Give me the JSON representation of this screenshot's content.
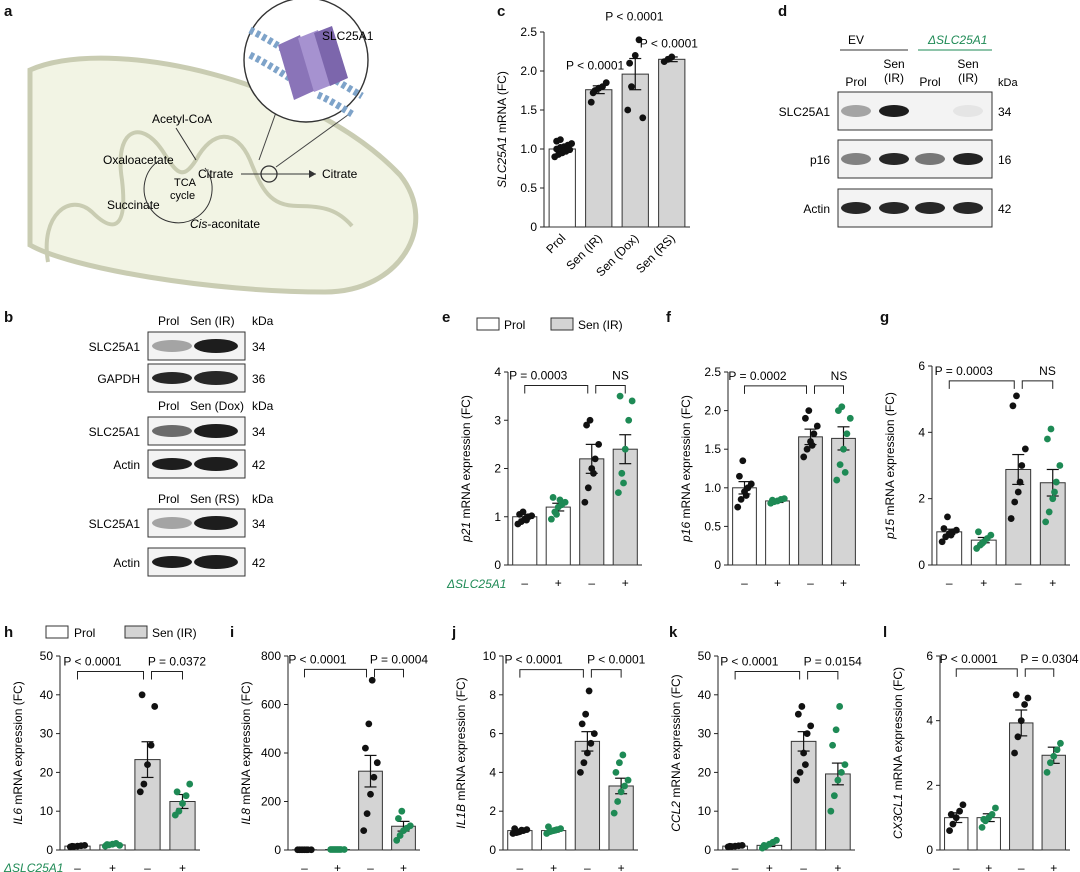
{
  "colors": {
    "prol_fill": "#ffffff",
    "sen_fill": "#d4d4d4",
    "control_dot": "#111111",
    "ko_dot": "#1e8a55",
    "ko_label": "#1e8a55",
    "bar_edge": "#333333"
  },
  "panel_labels": {
    "a": "a",
    "b": "b",
    "c": "c",
    "d": "d",
    "e": "e",
    "f": "f",
    "g": "g",
    "h": "h",
    "i": "i",
    "j": "j",
    "k": "k",
    "l": "l"
  },
  "legend": {
    "prol": "Prol",
    "sen": "Sen (IR)"
  },
  "ko_row_label": "ΔSLC25A1",
  "panel_a": {
    "protein": "SLC25A1",
    "acetyl_coa": "Acetyl-CoA",
    "oxaloacetate": "Oxaloacetate",
    "citrate_in": "Citrate",
    "tca": "TCA",
    "cycle": "cycle",
    "succinate": "Succinate",
    "cis": "Cis",
    "aconitate": "-aconitate",
    "citrate_out": "Citrate",
    "icons": [
      "mitochondrion-icon",
      "transporter-icon",
      "lipid-bilayer-icon"
    ]
  },
  "panel_b": {
    "kda": "kDa",
    "blocks": [
      {
        "headers": [
          "Prol",
          "Sen (IR)"
        ],
        "rows": [
          {
            "label": "SLC25A1",
            "kda": "34"
          },
          {
            "label": "GAPDH",
            "kda": "36"
          }
        ]
      },
      {
        "headers": [
          "Prol",
          "Sen (Dox)"
        ],
        "rows": [
          {
            "label": "SLC25A1",
            "kda": "34"
          },
          {
            "label": "Actin",
            "kda": "42"
          }
        ]
      },
      {
        "headers": [
          "Prol",
          "Sen (RS)"
        ],
        "rows": [
          {
            "label": "SLC25A1",
            "kda": "34"
          },
          {
            "label": "Actin",
            "kda": "42"
          }
        ]
      }
    ]
  },
  "panel_d": {
    "group_ev": "EV",
    "group_ko": "ΔSLC25A1",
    "kda": "kDa",
    "lanes": [
      "Prol",
      "Sen\n(IR)",
      "Prol",
      "Sen\n(IR)"
    ],
    "rows": [
      {
        "label": "SLC25A1",
        "kda": "34"
      },
      {
        "label": "p16",
        "kda": "16"
      },
      {
        "label": "Actin",
        "kda": "42"
      }
    ]
  },
  "chart_data": [
    {
      "id": "c",
      "type": "bar",
      "ylabel_gene": "SLC25A1",
      "ylabel_rest": " mRNA (FC)",
      "ylim": [
        0,
        2.5
      ],
      "yticks": [
        "0",
        "0.5",
        "1.0",
        "1.5",
        "2.0",
        "2.5"
      ],
      "categories": [
        "Prol",
        "Sen (IR)",
        "Sen (Dox)",
        "Sen (RS)"
      ],
      "values": [
        1.0,
        1.76,
        1.96,
        2.15
      ],
      "errors": [
        0.03,
        0.05,
        0.2,
        0.03
      ],
      "annotations": [
        "P < 0.0001",
        "P < 0.0001",
        "P < 0.0001"
      ]
    },
    {
      "id": "e",
      "type": "bar",
      "ylabel_gene": "p21",
      "ylabel_rest": " mRNA expression (FC)",
      "ylim": [
        0,
        4
      ],
      "yticks": [
        "0",
        "1",
        "2",
        "3",
        "4"
      ],
      "x_signs": [
        "–",
        "+",
        "–",
        "+"
      ],
      "values": [
        1.0,
        1.2,
        2.2,
        2.4
      ],
      "errors": [
        0.05,
        0.08,
        0.3,
        0.3
      ],
      "annotations": [
        "P = 0.0003",
        "NS"
      ]
    },
    {
      "id": "f",
      "type": "bar",
      "ylabel_gene": "p16",
      "ylabel_rest": " mRNA expression (FC)",
      "ylim": [
        0,
        2.5
      ],
      "yticks": [
        "0",
        "0.5",
        "1.0",
        "1.5",
        "2.0",
        "2.5"
      ],
      "x_signs": [
        "–",
        "+",
        "–",
        "+"
      ],
      "values": [
        1.0,
        0.83,
        1.66,
        1.64
      ],
      "errors": [
        0.08,
        0.02,
        0.1,
        0.15
      ],
      "annotations": [
        "P = 0.0002",
        "NS"
      ]
    },
    {
      "id": "g",
      "type": "bar",
      "ylabel_gene": "p15",
      "ylabel_rest": " mRNA expression (FC)",
      "ylim": [
        0,
        6
      ],
      "yticks": [
        "0",
        "2",
        "4",
        "6"
      ],
      "x_signs": [
        "–",
        "+",
        "–",
        "+"
      ],
      "values": [
        1.0,
        0.75,
        2.88,
        2.48
      ],
      "errors": [
        0.08,
        0.08,
        0.45,
        0.4
      ],
      "annotations": [
        "P = 0.0003",
        "NS"
      ]
    },
    {
      "id": "h",
      "type": "bar",
      "ylabel_gene": "IL6",
      "ylabel_rest": " mRNA expression (FC)",
      "ylim": [
        0,
        50
      ],
      "yticks": [
        "0",
        "10",
        "20",
        "30",
        "40",
        "50"
      ],
      "x_signs": [
        "–",
        "+",
        "–",
        "+"
      ],
      "values": [
        1.0,
        1.3,
        23.3,
        12.5
      ],
      "errors": [
        0.2,
        0.2,
        4.6,
        1.8
      ],
      "annotations": [
        "P < 0.0001",
        "P = 0.0372"
      ]
    },
    {
      "id": "i",
      "type": "bar",
      "ylabel_gene": "IL8",
      "ylabel_rest": " mRNA expression (FC)",
      "ylim": [
        0,
        800
      ],
      "yticks": [
        "0",
        "200",
        "400",
        "600",
        "800"
      ],
      "x_signs": [
        "–",
        "+",
        "–",
        "+"
      ],
      "values": [
        1.0,
        2.0,
        325,
        98
      ],
      "errors": [
        0.5,
        0.5,
        65,
        20
      ],
      "annotations": [
        "P < 0.0001",
        "P = 0.0004"
      ]
    },
    {
      "id": "j",
      "type": "bar",
      "ylabel_gene": "IL1B",
      "ylabel_rest": " mRNA expression (FC)",
      "ylim": [
        0,
        10
      ],
      "yticks": [
        "0",
        "2",
        "4",
        "6",
        "8",
        "10"
      ],
      "x_signs": [
        "–",
        "+",
        "–",
        "+"
      ],
      "values": [
        1.0,
        1.0,
        5.6,
        3.3
      ],
      "errors": [
        0.05,
        0.08,
        0.5,
        0.4
      ],
      "annotations": [
        "P < 0.0001",
        "P < 0.0001"
      ]
    },
    {
      "id": "k",
      "type": "bar",
      "ylabel_gene": "CCL2",
      "ylabel_rest": " mRNA expression (FC)",
      "ylim": [
        0,
        50
      ],
      "yticks": [
        "0",
        "10",
        "20",
        "30",
        "40",
        "50"
      ],
      "x_signs": [
        "–",
        "+",
        "–",
        "+"
      ],
      "values": [
        1.0,
        1.2,
        28.0,
        19.6
      ],
      "errors": [
        0.2,
        0.3,
        2.5,
        2.8
      ],
      "annotations": [
        "P < 0.0001",
        "P = 0.0154"
      ]
    },
    {
      "id": "l",
      "type": "bar",
      "ylabel_gene": "CX3CL1",
      "ylabel_rest": " mRNA expression (FC)",
      "ylim": [
        0,
        6
      ],
      "yticks": [
        "0",
        "2",
        "4",
        "6"
      ],
      "x_signs": [
        "–",
        "+",
        "–",
        "+"
      ],
      "values": [
        1.0,
        1.0,
        3.93,
        2.93
      ],
      "errors": [
        0.15,
        0.12,
        0.4,
        0.25
      ],
      "annotations": [
        "P < 0.0001",
        "P = 0.0304"
      ]
    }
  ]
}
